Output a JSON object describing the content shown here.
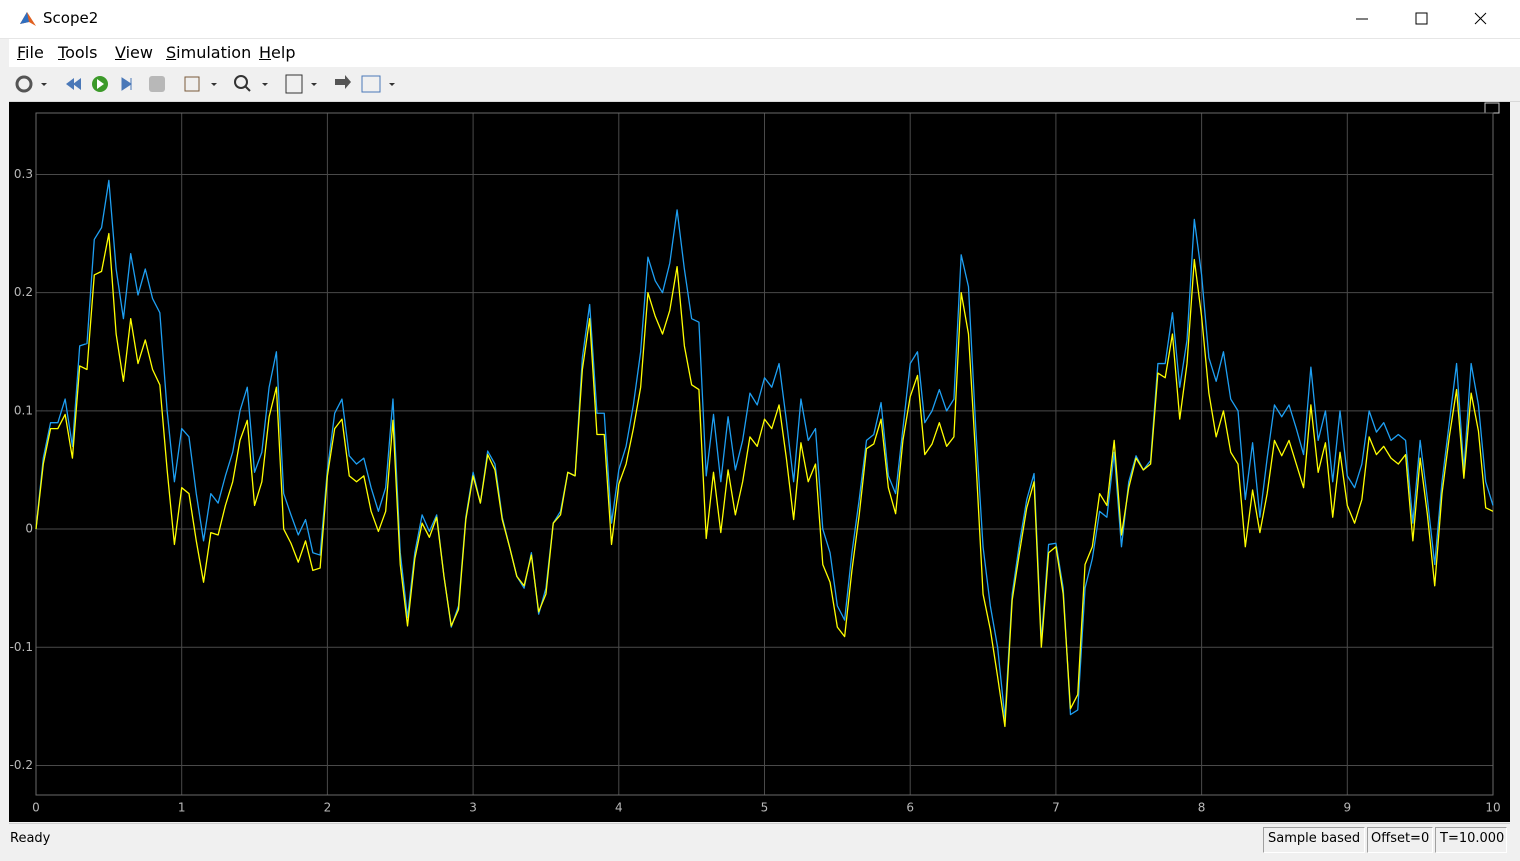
{
  "window": {
    "title": "Scope2"
  },
  "menu": [
    "File",
    "Tools",
    "View",
    "Simulation",
    "Help"
  ],
  "status": {
    "message": "Ready",
    "mode": "Sample based",
    "offset": "Offset=0",
    "time": "T=10.000"
  },
  "chart_data": {
    "type": "line",
    "grid": true,
    "background": "#000000",
    "xlim": [
      0,
      10
    ],
    "xticks": [
      0,
      1,
      2,
      3,
      4,
      5,
      6,
      7,
      8,
      9,
      10
    ],
    "ylim": [
      -0.225,
      0.352
    ],
    "yticks": [
      -0.2,
      -0.1,
      0,
      0.1,
      0.2,
      0.3
    ],
    "x": [
      0,
      0.05,
      0.1,
      0.15,
      0.2,
      0.25,
      0.3,
      0.35,
      0.4,
      0.45,
      0.5,
      0.55,
      0.6,
      0.65,
      0.7,
      0.75,
      0.8,
      0.85,
      0.9,
      0.95,
      1,
      1.05,
      1.1,
      1.15,
      1.2,
      1.25,
      1.3,
      1.35,
      1.4,
      1.45,
      1.5,
      1.55,
      1.6,
      1.65,
      1.7,
      1.75,
      1.8,
      1.85,
      1.9,
      1.95,
      2,
      2.05,
      2.1,
      2.15,
      2.2,
      2.25,
      2.3,
      2.35,
      2.4,
      2.45,
      2.5,
      2.55,
      2.6,
      2.65,
      2.7,
      2.75,
      2.8,
      2.85,
      2.9,
      2.95,
      3,
      3.05,
      3.1,
      3.15,
      3.2,
      3.25,
      3.3,
      3.35,
      3.4,
      3.45,
      3.5,
      3.55,
      3.6,
      3.65,
      3.7,
      3.75,
      3.8,
      3.85,
      3.9,
      3.95,
      4,
      4.05,
      4.1,
      4.15,
      4.2,
      4.25,
      4.3,
      4.35,
      4.4,
      4.45,
      4.5,
      4.55,
      4.6,
      4.65,
      4.7,
      4.75,
      4.8,
      4.85,
      4.9,
      4.95,
      5,
      5.05,
      5.1,
      5.15,
      5.2,
      5.25,
      5.3,
      5.35,
      5.4,
      5.45,
      5.5,
      5.55,
      5.6,
      5.65,
      5.7,
      5.75,
      5.8,
      5.85,
      5.9,
      5.95,
      6,
      6.05,
      6.1,
      6.15,
      6.2,
      6.25,
      6.3,
      6.35,
      6.4,
      6.45,
      6.5,
      6.55,
      6.6,
      6.65,
      6.7,
      6.75,
      6.8,
      6.85,
      6.9,
      6.95,
      7,
      7.05,
      7.1,
      7.15,
      7.2,
      7.25,
      7.3,
      7.35,
      7.4,
      7.45,
      7.5,
      7.55,
      7.6,
      7.65,
      7.7,
      7.75,
      7.8,
      7.85,
      7.9,
      7.95,
      8,
      8.05,
      8.1,
      8.15,
      8.2,
      8.25,
      8.3,
      8.35,
      8.4,
      8.45,
      8.5,
      8.55,
      8.6,
      8.65,
      8.7,
      8.75,
      8.8,
      8.85,
      8.9,
      8.95,
      9,
      9.05,
      9.1,
      9.15,
      9.2,
      9.25,
      9.3,
      9.35,
      9.4,
      9.45,
      9.5,
      9.55,
      9.6,
      9.65,
      9.7,
      9.75,
      9.8,
      9.85,
      9.9,
      9.95,
      10
    ],
    "series": [
      {
        "color": "#1e9ff2",
        "values": [
          0,
          0.06,
          0.09,
          0.09,
          0.11,
          0.07,
          0.155,
          0.157,
          0.245,
          0.255,
          0.295,
          0.22,
          0.178,
          0.233,
          0.198,
          0.22,
          0.195,
          0.183,
          0.1,
          0.04,
          0.085,
          0.078,
          0.03,
          -0.01,
          0.03,
          0.022,
          0.045,
          0.065,
          0.1,
          0.12,
          0.048,
          0.065,
          0.12,
          0.15,
          0.03,
          0.012,
          -0.005,
          0.008,
          -0.02,
          -0.022,
          0.05,
          0.098,
          0.11,
          0.062,
          0.055,
          0.06,
          0.035,
          0.015,
          0.035,
          0.11,
          -0.02,
          -0.075,
          -0.02,
          0.012,
          -0.002,
          0.012,
          -0.04,
          -0.083,
          -0.065,
          0.01,
          0.048,
          0.022,
          0.066,
          0.055,
          0.01,
          -0.015,
          -0.04,
          -0.05,
          -0.02,
          -0.072,
          -0.05,
          0.005,
          0.015,
          0.048,
          0.045,
          0.145,
          0.19,
          0.098,
          0.098,
          0.005,
          0.05,
          0.07,
          0.105,
          0.15,
          0.23,
          0.21,
          0.2,
          0.225,
          0.27,
          0.22,
          0.178,
          0.175,
          0.045,
          0.097,
          0.04,
          0.095,
          0.05,
          0.075,
          0.115,
          0.105,
          0.128,
          0.12,
          0.14,
          0.092,
          0.04,
          0.11,
          0.075,
          0.085,
          0,
          -0.02,
          -0.065,
          -0.077,
          -0.02,
          0.025,
          0.075,
          0.08,
          0.107,
          0.045,
          0.03,
          0.085,
          0.14,
          0.15,
          0.09,
          0.1,
          0.118,
          0.1,
          0.11,
          0.232,
          0.205,
          0.085,
          -0.015,
          -0.065,
          -0.1,
          -0.16,
          -0.055,
          -0.012,
          0.025,
          0.047,
          -0.095,
          -0.013,
          -0.012,
          -0.05,
          -0.157,
          -0.153,
          -0.05,
          -0.025,
          0.015,
          0.01,
          0.065,
          -0.015,
          0.04,
          0.062,
          0.05,
          0.058,
          0.14,
          0.14,
          0.183,
          0.12,
          0.16,
          0.262,
          0.215,
          0.145,
          0.125,
          0.15,
          0.11,
          0.1,
          0.025,
          0.073,
          0.01,
          0.06,
          0.105,
          0.095,
          0.105,
          0.085,
          0.063,
          0.137,
          0.075,
          0.1,
          0.04,
          0.1,
          0.045,
          0.035,
          0.055,
          0.1,
          0.082,
          0.09,
          0.075,
          0.08,
          0.075,
          0.005,
          0.075,
          0.025,
          -0.03,
          0.04,
          0.09,
          0.14,
          0.05,
          0.14,
          0.105,
          0.04,
          0.02
        ]
      },
      {
        "color": "#ffff00",
        "values": [
          0,
          0.055,
          0.085,
          0.085,
          0.097,
          0.06,
          0.138,
          0.135,
          0.215,
          0.218,
          0.25,
          0.165,
          0.125,
          0.178,
          0.14,
          0.16,
          0.135,
          0.122,
          0.05,
          -0.013,
          0.035,
          0.03,
          -0.01,
          -0.045,
          -0.003,
          -0.005,
          0.02,
          0.04,
          0.075,
          0.092,
          0.02,
          0.04,
          0.095,
          0.12,
          0,
          -0.012,
          -0.028,
          -0.01,
          -0.035,
          -0.033,
          0.045,
          0.085,
          0.093,
          0.045,
          0.04,
          0.045,
          0.015,
          -0.002,
          0.015,
          0.092,
          -0.03,
          -0.082,
          -0.025,
          0.005,
          -0.007,
          0.01,
          -0.04,
          -0.082,
          -0.068,
          0.008,
          0.045,
          0.022,
          0.063,
          0.05,
          0.008,
          -0.015,
          -0.04,
          -0.048,
          -0.022,
          -0.07,
          -0.055,
          0.005,
          0.012,
          0.048,
          0.045,
          0.135,
          0.178,
          0.08,
          0.08,
          -0.013,
          0.038,
          0.055,
          0.085,
          0.12,
          0.2,
          0.18,
          0.165,
          0.185,
          0.222,
          0.155,
          0.122,
          0.118,
          -0.008,
          0.048,
          -0.003,
          0.05,
          0.012,
          0.04,
          0.078,
          0.07,
          0.093,
          0.085,
          0.105,
          0.06,
          0.008,
          0.073,
          0.04,
          0.055,
          -0.03,
          -0.045,
          -0.083,
          -0.091,
          -0.035,
          0.012,
          0.068,
          0.072,
          0.093,
          0.035,
          0.013,
          0.075,
          0.112,
          0.13,
          0.063,
          0.072,
          0.09,
          0.07,
          0.078,
          0.2,
          0.165,
          0.06,
          -0.055,
          -0.085,
          -0.125,
          -0.167,
          -0.06,
          -0.02,
          0.018,
          0.04,
          -0.1,
          -0.02,
          -0.015,
          -0.055,
          -0.152,
          -0.14,
          -0.03,
          -0.015,
          0.03,
          0.02,
          0.075,
          -0.005,
          0.035,
          0.06,
          0.05,
          0.055,
          0.132,
          0.128,
          0.165,
          0.093,
          0.14,
          0.228,
          0.18,
          0.115,
          0.078,
          0.1,
          0.065,
          0.055,
          -0.015,
          0.033,
          -0.003,
          0.03,
          0.075,
          0.062,
          0.075,
          0.055,
          0.035,
          0.105,
          0.048,
          0.073,
          0.01,
          0.065,
          0.02,
          0.005,
          0.025,
          0.078,
          0.063,
          0.07,
          0.06,
          0.055,
          0.063,
          -0.01,
          0.06,
          0.012,
          -0.048,
          0.03,
          0.078,
          0.118,
          0.043,
          0.115,
          0.083,
          0.018,
          0.015
        ]
      }
    ]
  }
}
